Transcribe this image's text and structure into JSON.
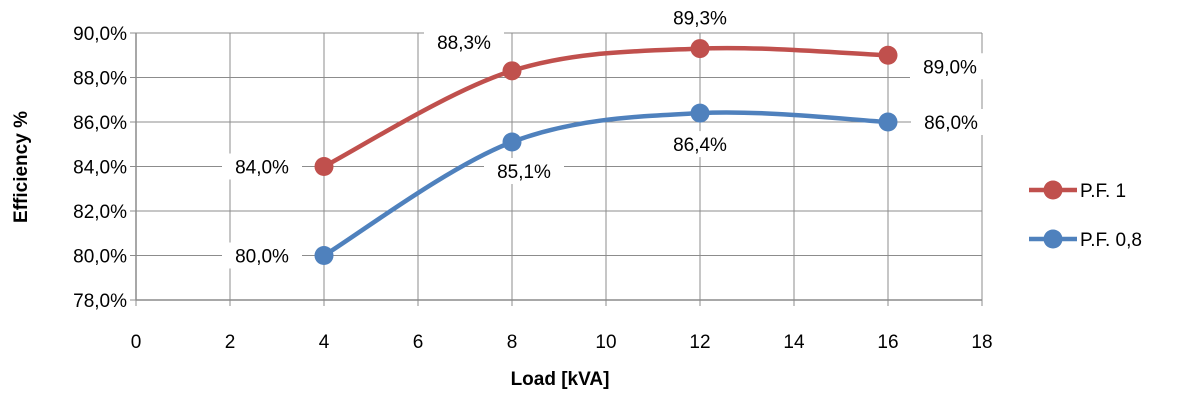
{
  "chart_data": {
    "type": "line",
    "title": "",
    "xlabel": "Load [kVA]",
    "ylabel": "Efficiency %",
    "xlim": [
      0,
      18
    ],
    "ylim": [
      78,
      90
    ],
    "x_ticks": [
      0,
      2,
      4,
      6,
      8,
      10,
      12,
      14,
      16,
      18
    ],
    "y_ticks": [
      78,
      80,
      82,
      84,
      86,
      88,
      90
    ],
    "y_tick_labels": [
      "78,0%",
      "80,0%",
      "82,0%",
      "84,0%",
      "86,0%",
      "88,0%",
      "90,0%"
    ],
    "grid": true,
    "smooth": true,
    "legend_position": "right",
    "series": [
      {
        "name": "P.F. 1",
        "color": "#C0504D",
        "x": [
          4,
          8,
          12,
          16
        ],
        "y": [
          84.0,
          88.3,
          89.3,
          89.0
        ],
        "labels": [
          "84,0%",
          "88,3%",
          "89,3%",
          "89,0%"
        ]
      },
      {
        "name": "P.F. 0,8",
        "color": "#4F81BD",
        "x": [
          4,
          8,
          12,
          16
        ],
        "y": [
          80.0,
          85.1,
          86.4,
          86.0
        ],
        "labels": [
          "80,0%",
          "85,1%",
          "86,4%",
          "86,0%"
        ]
      }
    ]
  }
}
